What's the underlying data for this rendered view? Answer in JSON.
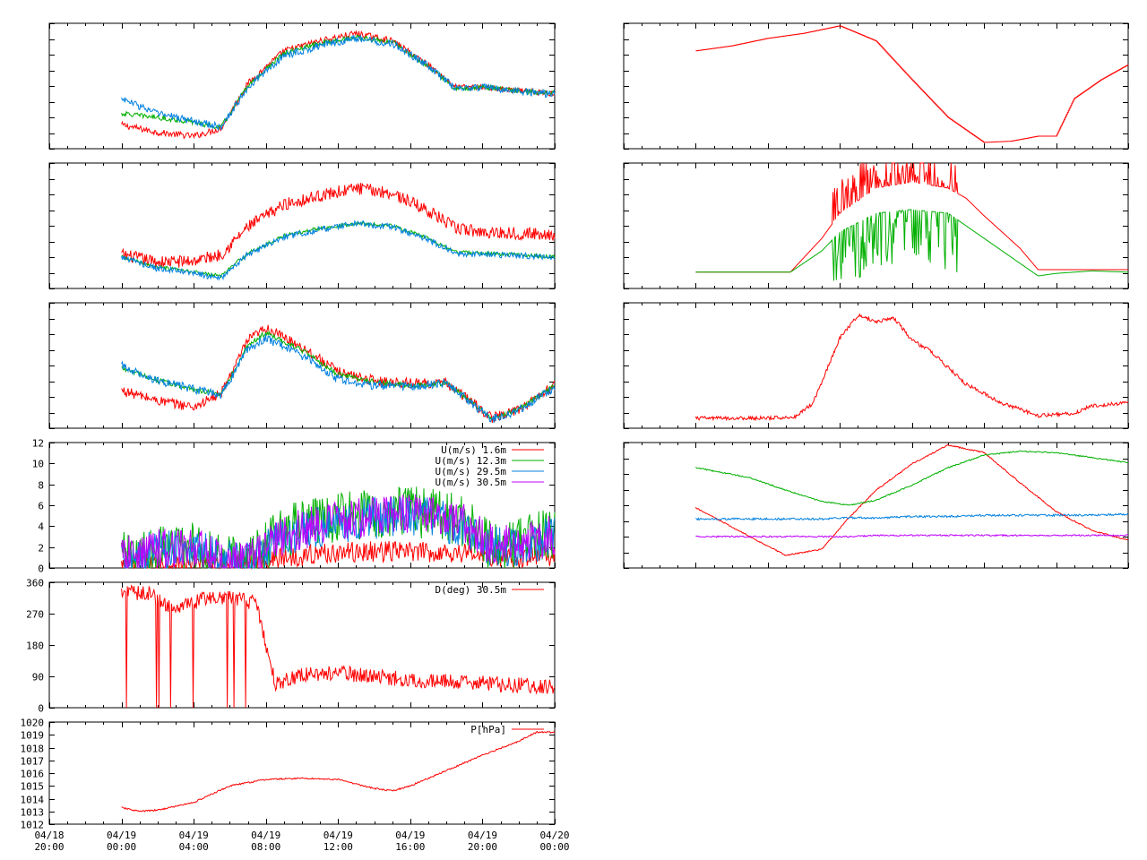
{
  "time_axis": {
    "start": "04/18 20:00",
    "end": "04/20 00:00",
    "major_ticks": [
      {
        "date": "04/18",
        "time": "20:00"
      },
      {
        "date": "04/19",
        "time": "00:00"
      },
      {
        "date": "04/19",
        "time": "04:00"
      },
      {
        "date": "04/19",
        "time": "08:00"
      },
      {
        "date": "04/19",
        "time": "12:00"
      },
      {
        "date": "04/19",
        "time": "16:00"
      },
      {
        "date": "04/19",
        "time": "20:00"
      },
      {
        "date": "04/20",
        "time": "00:00"
      }
    ]
  },
  "colors": {
    "red": "#ff0000",
    "green": "#00b000",
    "blue": "#0080e0",
    "magenta": "#c000ff",
    "frame": "#000000"
  },
  "chart_data": [
    {
      "id": "left-1",
      "type": "line",
      "x": [
        "04/19 00:00",
        "04/19 02:00",
        "04/19 04:00",
        "04/19 05:30",
        "04/19 07:00",
        "04/19 09:00",
        "04/19 11:00",
        "04/19 13:00",
        "04/19 15:00",
        "04/19 17:00",
        "04/19 18:30",
        "04/19 20:00",
        "04/19 22:00",
        "04/20 00:00"
      ],
      "ylim": [
        0,
        1
      ],
      "series": [
        {
          "color": "red",
          "noise": 0.025,
          "values": [
            0.19,
            0.13,
            0.1,
            0.16,
            0.52,
            0.78,
            0.86,
            0.92,
            0.86,
            0.67,
            0.49,
            0.49,
            0.46,
            0.44
          ]
        },
        {
          "color": "green",
          "noise": 0.02,
          "values": [
            0.28,
            0.25,
            0.21,
            0.17,
            0.5,
            0.76,
            0.84,
            0.89,
            0.85,
            0.66,
            0.48,
            0.49,
            0.46,
            0.44
          ]
        },
        {
          "color": "blue",
          "noise": 0.03,
          "values": [
            0.4,
            0.28,
            0.22,
            0.17,
            0.49,
            0.74,
            0.82,
            0.88,
            0.84,
            0.66,
            0.48,
            0.49,
            0.46,
            0.43
          ]
        }
      ]
    },
    {
      "id": "left-2",
      "type": "line",
      "x": [
        "04/19 00:00",
        "04/19 02:00",
        "04/19 04:00",
        "04/19 05:30",
        "04/19 07:00",
        "04/19 09:00",
        "04/19 11:00",
        "04/19 13:00",
        "04/19 15:00",
        "04/19 17:00",
        "04/19 18:30",
        "04/19 20:00",
        "04/19 22:00",
        "04/20 00:00"
      ],
      "ylim": [
        0,
        1
      ],
      "series": [
        {
          "color": "red",
          "noise": 0.05,
          "values": [
            0.27,
            0.21,
            0.22,
            0.27,
            0.49,
            0.67,
            0.74,
            0.8,
            0.76,
            0.62,
            0.48,
            0.45,
            0.44,
            0.43
          ]
        },
        {
          "color": "green",
          "noise": 0.015,
          "values": [
            0.25,
            0.17,
            0.13,
            0.1,
            0.28,
            0.42,
            0.48,
            0.52,
            0.5,
            0.4,
            0.29,
            0.28,
            0.27,
            0.25
          ]
        },
        {
          "color": "blue",
          "noise": 0.025,
          "values": [
            0.25,
            0.16,
            0.12,
            0.08,
            0.27,
            0.41,
            0.47,
            0.52,
            0.49,
            0.39,
            0.28,
            0.27,
            0.26,
            0.25
          ]
        }
      ]
    },
    {
      "id": "left-3",
      "type": "line",
      "x": [
        "04/19 00:00",
        "04/19 02:00",
        "04/19 04:00",
        "04/19 05:30",
        "04/19 07:00",
        "04/19 08:00",
        "04/19 10:00",
        "04/19 12:00",
        "04/19 14:00",
        "04/19 16:00",
        "04/19 18:00",
        "04/19 19:30",
        "04/19 20:30",
        "04/19 22:00",
        "04/20 00:00"
      ],
      "ylim": [
        0,
        1
      ],
      "series": [
        {
          "color": "red",
          "noise": 0.04,
          "values": [
            0.3,
            0.22,
            0.17,
            0.27,
            0.7,
            0.8,
            0.65,
            0.45,
            0.38,
            0.36,
            0.36,
            0.2,
            0.08,
            0.15,
            0.34
          ]
        },
        {
          "color": "green",
          "noise": 0.02,
          "values": [
            0.48,
            0.38,
            0.31,
            0.27,
            0.66,
            0.76,
            0.62,
            0.43,
            0.37,
            0.34,
            0.36,
            0.2,
            0.08,
            0.15,
            0.34
          ]
        },
        {
          "color": "blue",
          "noise": 0.035,
          "values": [
            0.5,
            0.38,
            0.31,
            0.26,
            0.63,
            0.72,
            0.58,
            0.39,
            0.34,
            0.33,
            0.36,
            0.19,
            0.07,
            0.14,
            0.33
          ]
        }
      ]
    },
    {
      "id": "wind-speed",
      "type": "line",
      "ylim": [
        0,
        12
      ],
      "yticks": [
        0,
        2,
        4,
        6,
        8,
        10,
        12
      ],
      "legend_position": "top-right",
      "x": [
        "04/19 00:00",
        "04/19 02:00",
        "04/19 04:00",
        "04/19 05:30",
        "04/19 07:00",
        "04/19 09:00",
        "04/19 11:00",
        "04/19 13:00",
        "04/19 15:00",
        "04/19 17:00",
        "04/19 19:00",
        "04/19 20:30",
        "04/19 22:00",
        "04/20 00:00"
      ],
      "series": [
        {
          "name": "U(m/s)  1.6m",
          "color": "red",
          "noise": 1.0,
          "values": [
            0.2,
            0.3,
            0.3,
            0.3,
            0.3,
            1.0,
            1.4,
            1.5,
            1.6,
            1.5,
            1.5,
            1.0,
            1.0,
            1.2
          ]
        },
        {
          "name": "U(m/s) 12.3m",
          "color": "green",
          "noise": 2.5,
          "values": [
            1.2,
            1.8,
            2.0,
            1.0,
            0.5,
            3.5,
            4.5,
            5.0,
            5.5,
            5.2,
            4.5,
            2.0,
            2.5,
            3.5
          ]
        },
        {
          "name": "U(m/s) 29.5m",
          "color": "blue",
          "noise": 2.0,
          "values": [
            1.0,
            1.6,
            1.8,
            0.8,
            0.5,
            3.0,
            4.0,
            4.5,
            5.0,
            4.8,
            4.0,
            2.0,
            2.0,
            3.0
          ]
        },
        {
          "name": "U(m/s) 30.5m",
          "color": "magenta",
          "noise": 2.0,
          "values": [
            1.0,
            1.8,
            1.9,
            0.9,
            0.5,
            3.2,
            4.2,
            4.8,
            5.2,
            5.0,
            4.2,
            2.2,
            2.2,
            3.2
          ]
        }
      ]
    },
    {
      "id": "wind-direction",
      "type": "line",
      "ylim": [
        0,
        360
      ],
      "yticks": [
        0,
        90,
        180,
        270,
        360
      ],
      "legend_position": "top-right",
      "x": [
        "04/19 00:00",
        "04/19 01:30",
        "04/19 03:00",
        "04/19 05:00",
        "04/19 06:30",
        "04/19 07:30",
        "04/19 08:30",
        "04/19 10:00",
        "04/19 12:00",
        "04/19 14:00",
        "04/19 16:00",
        "04/19 18:00",
        "04/19 20:00",
        "04/19 22:00",
        "04/20 00:00"
      ],
      "series": [
        {
          "name": "D(deg)  30.5m",
          "color": "red",
          "noise": 22,
          "values": [
            330,
            330,
            280,
            320,
            310,
            300,
            70,
            95,
            100,
            90,
            80,
            75,
            70,
            65,
            60
          ]
        }
      ]
    },
    {
      "id": "pressure",
      "type": "line",
      "ylim": [
        1012,
        1020
      ],
      "yticks": [
        1012,
        1013,
        1014,
        1015,
        1016,
        1017,
        1018,
        1019,
        1020
      ],
      "legend_position": "top-right",
      "x": [
        "04/19 00:00",
        "04/19 01:00",
        "04/19 02:00",
        "04/19 04:00",
        "04/19 06:00",
        "04/19 08:00",
        "04/19 10:00",
        "04/19 12:00",
        "04/19 14:00",
        "04/19 15:00",
        "04/19 16:00",
        "04/19 18:00",
        "04/19 20:00",
        "04/19 22:00",
        "04/19 23:00",
        "04/20 00:00"
      ],
      "series": [
        {
          "name": "P[hPa]",
          "color": "red",
          "noise": 0.06,
          "values": [
            1013.3,
            1013.0,
            1013.1,
            1013.7,
            1015.0,
            1015.5,
            1015.6,
            1015.5,
            1014.8,
            1014.6,
            1015.0,
            1016.2,
            1017.4,
            1018.5,
            1019.2,
            1019.2
          ]
        }
      ]
    },
    {
      "id": "right-1",
      "type": "line",
      "ylim": [
        0,
        1
      ],
      "x": [
        "04/19 00:00",
        "04/19 02:00",
        "04/19 04:00",
        "04/19 06:00",
        "04/19 08:00",
        "04/19 10:00",
        "04/19 12:00",
        "04/19 14:00",
        "04/19 16:00",
        "04/19 17:30",
        "04/19 19:00",
        "04/19 20:00",
        "04/19 21:00",
        "04/19 22:30",
        "04/20 00:00"
      ],
      "series": [
        {
          "color": "red",
          "noise": 0.0,
          "step": true,
          "values": [
            0.78,
            0.82,
            0.88,
            0.92,
            0.98,
            0.86,
            0.55,
            0.25,
            0.05,
            0.06,
            0.1,
            0.1,
            0.4,
            0.55,
            0.67
          ]
        }
      ]
    },
    {
      "id": "right-2",
      "type": "line",
      "ylim": [
        0,
        1
      ],
      "x": [
        "04/19 00:00",
        "04/19 02:00",
        "04/19 04:00",
        "04/19 05:15",
        "04/19 07:00",
        "04/19 08:00",
        "04/19 10:00",
        "04/19 12:00",
        "04/19 14:00",
        "04/19 15:00",
        "04/19 16:00",
        "04/19 18:00",
        "04/19 19:00",
        "04/19 20:00",
        "04/19 22:00",
        "04/20 00:00"
      ],
      "series": [
        {
          "color": "red",
          "noise": 0.0,
          "spikes": [
            [
              "04/19 07:30",
              "04/19 14:30",
              0.3
            ]
          ],
          "values": [
            0.13,
            0.13,
            0.13,
            0.13,
            0.4,
            0.6,
            0.8,
            0.85,
            0.8,
            0.72,
            0.58,
            0.32,
            0.15,
            0.15,
            0.15,
            0.15
          ]
        },
        {
          "color": "green",
          "noise": 0.0,
          "spikes": [
            [
              "04/19 07:30",
              "04/19 14:30",
              -0.45
            ]
          ],
          "values": [
            0.13,
            0.13,
            0.13,
            0.13,
            0.3,
            0.45,
            0.6,
            0.63,
            0.6,
            0.5,
            0.4,
            0.2,
            0.1,
            0.12,
            0.14,
            0.13
          ]
        }
      ]
    },
    {
      "id": "right-3",
      "type": "line",
      "ylim": [
        0,
        1
      ],
      "x": [
        "04/19 00:00",
        "04/19 02:00",
        "04/19 04:00",
        "04/19 05:30",
        "04/19 06:30",
        "04/19 08:00",
        "04/19 09:00",
        "04/19 10:00",
        "04/19 11:00",
        "04/19 12:00",
        "04/19 13:00",
        "04/19 15:00",
        "04/19 17:00",
        "04/19 19:00",
        "04/19 21:00",
        "04/19 22:00",
        "04/20 00:00"
      ],
      "series": [
        {
          "color": "red",
          "noise": 0.015,
          "values": [
            0.08,
            0.08,
            0.08,
            0.09,
            0.2,
            0.72,
            0.9,
            0.85,
            0.88,
            0.7,
            0.62,
            0.35,
            0.2,
            0.1,
            0.12,
            0.18,
            0.2
          ]
        }
      ]
    },
    {
      "id": "right-4",
      "type": "line",
      "ylim": [
        0,
        1
      ],
      "x": [
        "04/19 00:00",
        "04/19 03:00",
        "04/19 05:00",
        "04/19 07:00",
        "04/19 08:30",
        "04/19 10:00",
        "04/19 12:00",
        "04/19 14:00",
        "04/19 16:00",
        "04/19 18:00",
        "04/19 20:00",
        "04/19 22:00",
        "04/20 00:00"
      ],
      "series": [
        {
          "color": "red",
          "noise": 0.005,
          "values": [
            0.48,
            0.25,
            0.1,
            0.15,
            0.4,
            0.62,
            0.83,
            0.98,
            0.92,
            0.68,
            0.45,
            0.3,
            0.22
          ]
        },
        {
          "color": "green",
          "noise": 0.005,
          "values": [
            0.8,
            0.72,
            0.62,
            0.53,
            0.5,
            0.54,
            0.66,
            0.8,
            0.9,
            0.93,
            0.92,
            0.88,
            0.84
          ]
        },
        {
          "color": "blue",
          "noise": 0.008,
          "values": [
            0.39,
            0.39,
            0.39,
            0.39,
            0.4,
            0.4,
            0.41,
            0.41,
            0.42,
            0.42,
            0.42,
            0.42,
            0.43
          ]
        },
        {
          "color": "magenta",
          "noise": 0.006,
          "values": [
            0.25,
            0.25,
            0.25,
            0.25,
            0.25,
            0.26,
            0.26,
            0.26,
            0.26,
            0.26,
            0.26,
            0.26,
            0.26
          ]
        }
      ]
    }
  ]
}
